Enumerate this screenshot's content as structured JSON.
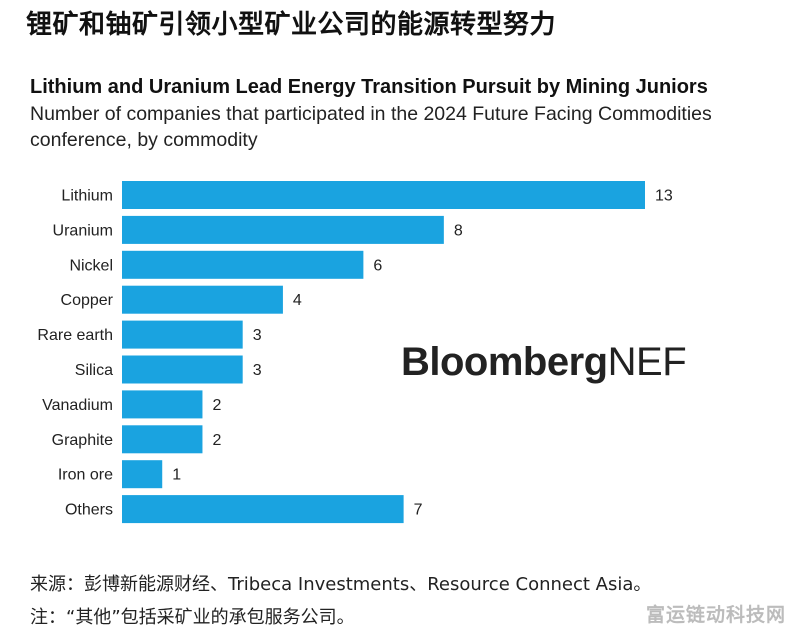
{
  "headline": "锂矿和铀矿引领小型矿业公司的能源转型努力",
  "chart_data": {
    "type": "bar",
    "orientation": "horizontal",
    "title": "Lithium and Uranium Lead Energy Transition Pursuit by Mining Juniors",
    "subtitle": "Number of companies that participated in the 2024 Future Facing Commodities conference, by commodity",
    "categories": [
      "Lithium",
      "Uranium",
      "Nickel",
      "Copper",
      "Rare earth",
      "Silica",
      "Vanadium",
      "Graphite",
      "Iron ore",
      "Others"
    ],
    "values": [
      13,
      8,
      6,
      4,
      3,
      3,
      2,
      2,
      1,
      7
    ],
    "xlim": [
      0,
      13
    ],
    "xlabel": "",
    "ylabel": "",
    "grid": false,
    "bar_color": "#1aa3e0"
  },
  "watermark": {
    "brand_bold": "Bloomberg",
    "brand_light": "NEF"
  },
  "footer": {
    "source": "来源：彭博新能源财经、Tribeca Investments、Resource Connect Asia。",
    "note": "注：“其他”包括采矿业的承包服务公司。"
  },
  "site_watermark": "富运链动科技网"
}
